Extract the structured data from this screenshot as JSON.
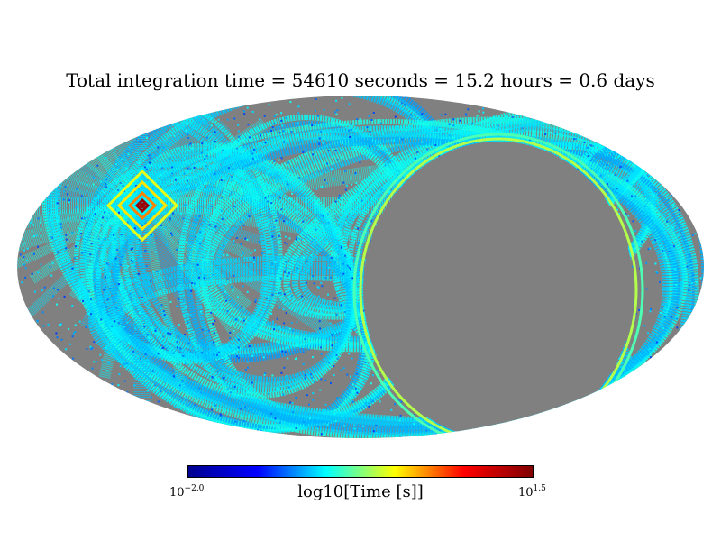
{
  "map": {
    "projection": "mollweide",
    "title": "Total integration time = 54610 seconds = 15.2 hours = 0.6 days",
    "colors": {
      "background": "#ffffff",
      "unobserved": "#808080"
    },
    "colorbar": {
      "colormap": "jet",
      "label": "log10[Time [s]]",
      "min_base": "10",
      "min_exp": "−2.0",
      "max_base": "10",
      "max_exp": "1.5",
      "range": [
        -2.0,
        1.5
      ],
      "stops": [
        "#00008f",
        "#0000ff",
        "#00ffff",
        "#ffff00",
        "#ff0000",
        "#800000"
      ]
    },
    "hotspot_value": 1.4
  }
}
